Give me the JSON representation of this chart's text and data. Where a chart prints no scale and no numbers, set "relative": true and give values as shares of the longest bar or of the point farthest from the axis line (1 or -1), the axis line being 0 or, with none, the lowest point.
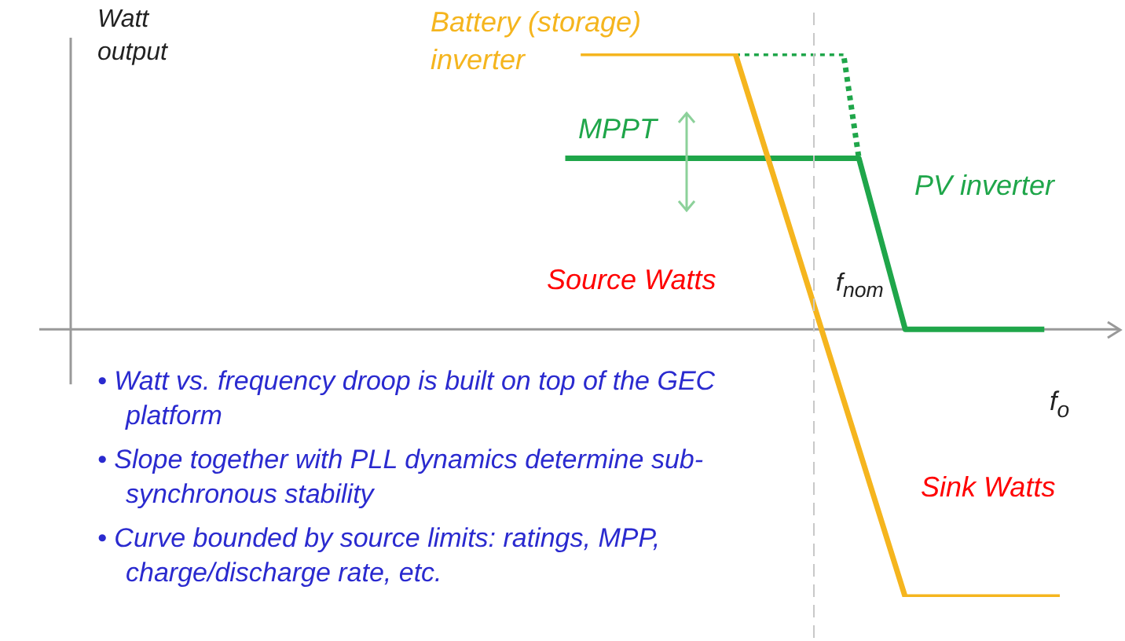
{
  "chart_data": {
    "type": "line",
    "relative": true,
    "ylabel": "Watt\noutput",
    "xlabel": "f$_{o}$",
    "categories": [
      null,
      null,
      null,
      null,
      null,
      null,
      null,
      null,
      null,
      null,
      null,
      null,
      null,
      null,
      null,
      null,
      null,
      null,
      null,
      null,
      null,
      null,
      null,
      null,
      null,
      null,
      null,
      null,
      null,
      null,
      null,
      null,
      null,
      null,
      null,
      null,
      null,
      null,
      null,
      null,
      null,
      null,
      null,
      null,
      null,
      null,
      null,
      null,
      null,
      null,
      null,
      null,
      null,
      null,
      null,
      null,
      null,
      null,
      null,
      null,
      null,
      null,
      null,
      null,
      null,
      null,
      null,
      null
    ],
    "series": [
      {
        "name": "Battery (storage) inverter",
        "color": "#f5b51e",
        "values": [
          null,
          null,
          null,
          null,
          null,
          null,
          null,
          null,
          null,
          null,
          null,
          null,
          null,
          null,
          null,
          null,
          null,
          null,
          null,
          null,
          null,
          null,
          null,
          null,
          null,
          null,
          null,
          null,
          null,
          null,
          null,
          null,
          null,
          1,
          null,
          null,
          null,
          null,
          null,
          null,
          null,
          null,
          null,
          1,
          null,
          null,
          null,
          null,
          null,
          null,
          null,
          null,
          null,
          null,
          -0.97,
          null,
          null,
          null,
          null,
          null,
          null,
          null,
          null,
          null,
          -0.97,
          null,
          null,
          null
        ]
      },
      {
        "name": "PV inverter",
        "color": "#1fa64a",
        "values": [
          null,
          null,
          null,
          null,
          null,
          null,
          null,
          null,
          null,
          null,
          null,
          null,
          null,
          null,
          null,
          null,
          null,
          null,
          null,
          null,
          null,
          null,
          null,
          null,
          null,
          null,
          null,
          null,
          null,
          null,
          null,
          null,
          0.62,
          null,
          null,
          null,
          null,
          null,
          null,
          null,
          null,
          null,
          null,
          null,
          null,
          null,
          null,
          null,
          null,
          null,
          null,
          0.62,
          null,
          null,
          0,
          null,
          null,
          null,
          null,
          null,
          null,
          null,
          null,
          0,
          null,
          null,
          null,
          null
        ]
      },
      {
        "color": "#1fa64a",
        "line_style": "dotted",
        "values": [
          null,
          null,
          null,
          null,
          null,
          null,
          null,
          null,
          null,
          null,
          null,
          null,
          null,
          null,
          null,
          null,
          null,
          null,
          null,
          null,
          null,
          null,
          null,
          null,
          null,
          null,
          null,
          null,
          null,
          null,
          null,
          null,
          null,
          null,
          null,
          null,
          null,
          null,
          null,
          null,
          null,
          null,
          null,
          1,
          null,
          null,
          null,
          null,
          null,
          null,
          1,
          0.62,
          null,
          null,
          null,
          null,
          null,
          null,
          null,
          null,
          null,
          null,
          null,
          null,
          null,
          null,
          null,
          null
        ]
      }
    ],
    "annotations": [
      "MPPT",
      "Source Watts",
      "Sink Watts",
      "f$_{nom}$",
      "• Watt vs. frequency droop is built on top of the GEC platform",
      "• Slope together with PLL dynamics determine sub-synchronous stability",
      "• Curve bounded by source limits: ratings, MPP, charge/discharge rate, etc."
    ],
    "legend": false
  }
}
